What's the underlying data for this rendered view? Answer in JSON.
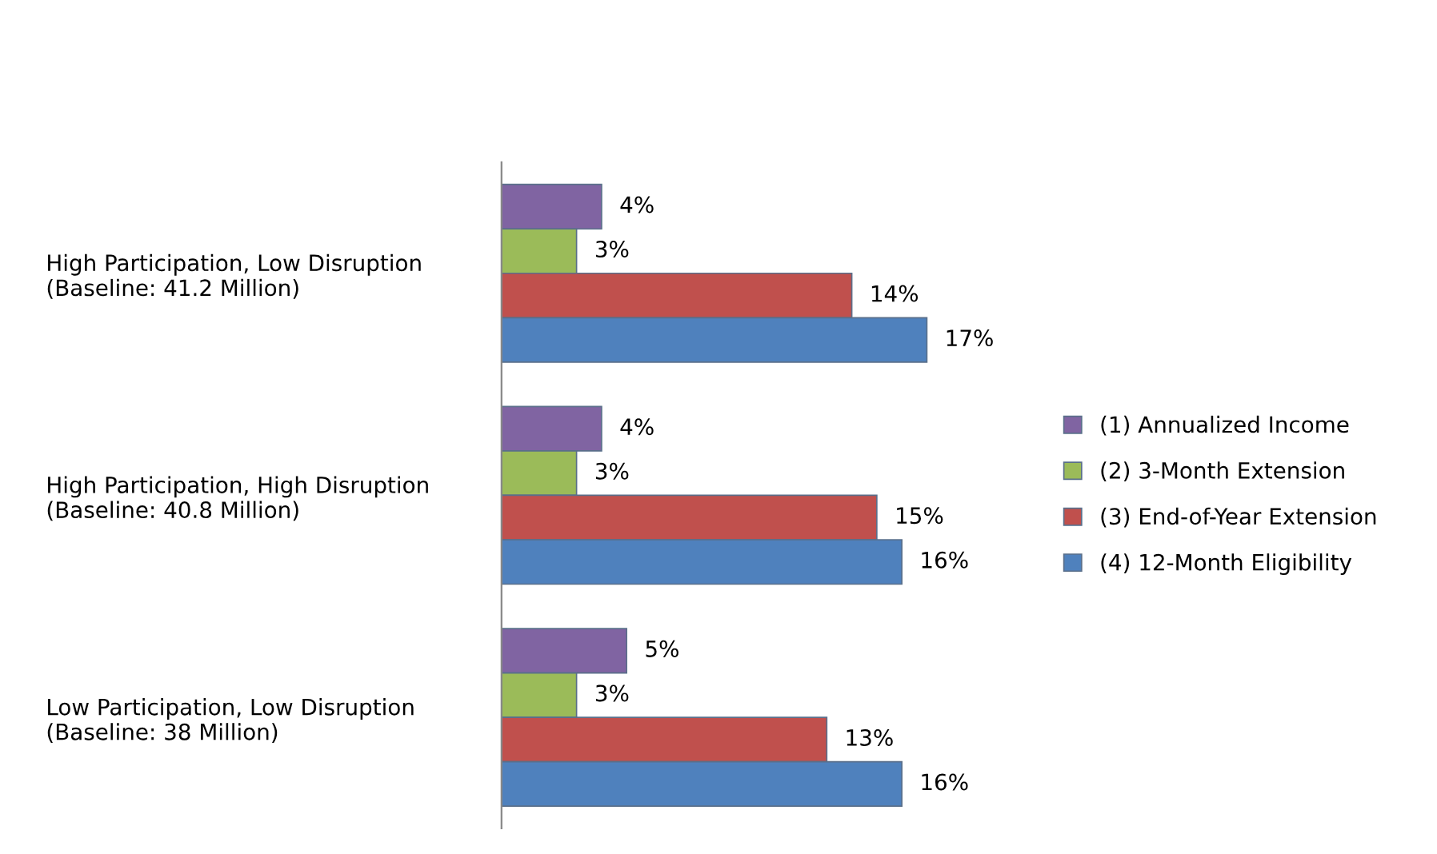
{
  "chart_data": {
    "type": "bar",
    "orientation": "horizontal",
    "legend": "right",
    "grid": false,
    "tick_labels": "y",
    "categories": [
      "High Participation, Low Disruption\n(Baseline: 41.2 Million)",
      "High Participation, High Disruption\n(Baseline: 40.8 Million)",
      "Low Participation, Low Disruption\n(Baseline: 38 Million)"
    ],
    "series": [
      {
        "name": "(1) Annualized Income",
        "color": "#8064a2",
        "values": [
          4,
          4,
          5
        ],
        "value_labels": [
          "4%",
          "4%",
          "5%"
        ]
      },
      {
        "name": "(2) 3-Month Extension",
        "color": "#9bbb59",
        "values": [
          3,
          3,
          3
        ],
        "value_labels": [
          "3%",
          "3%",
          "3%"
        ]
      },
      {
        "name": "(3) End-of-Year Extension",
        "color": "#c0504d",
        "values": [
          14,
          15,
          13
        ],
        "value_labels": [
          "14%",
          "15%",
          "13%"
        ]
      },
      {
        "name": "(4) 12-Month Eligibility",
        "color": "#4f81bd",
        "values": [
          17,
          16,
          16
        ],
        "value_labels": [
          "17%",
          "16%",
          "16%"
        ]
      }
    ]
  }
}
